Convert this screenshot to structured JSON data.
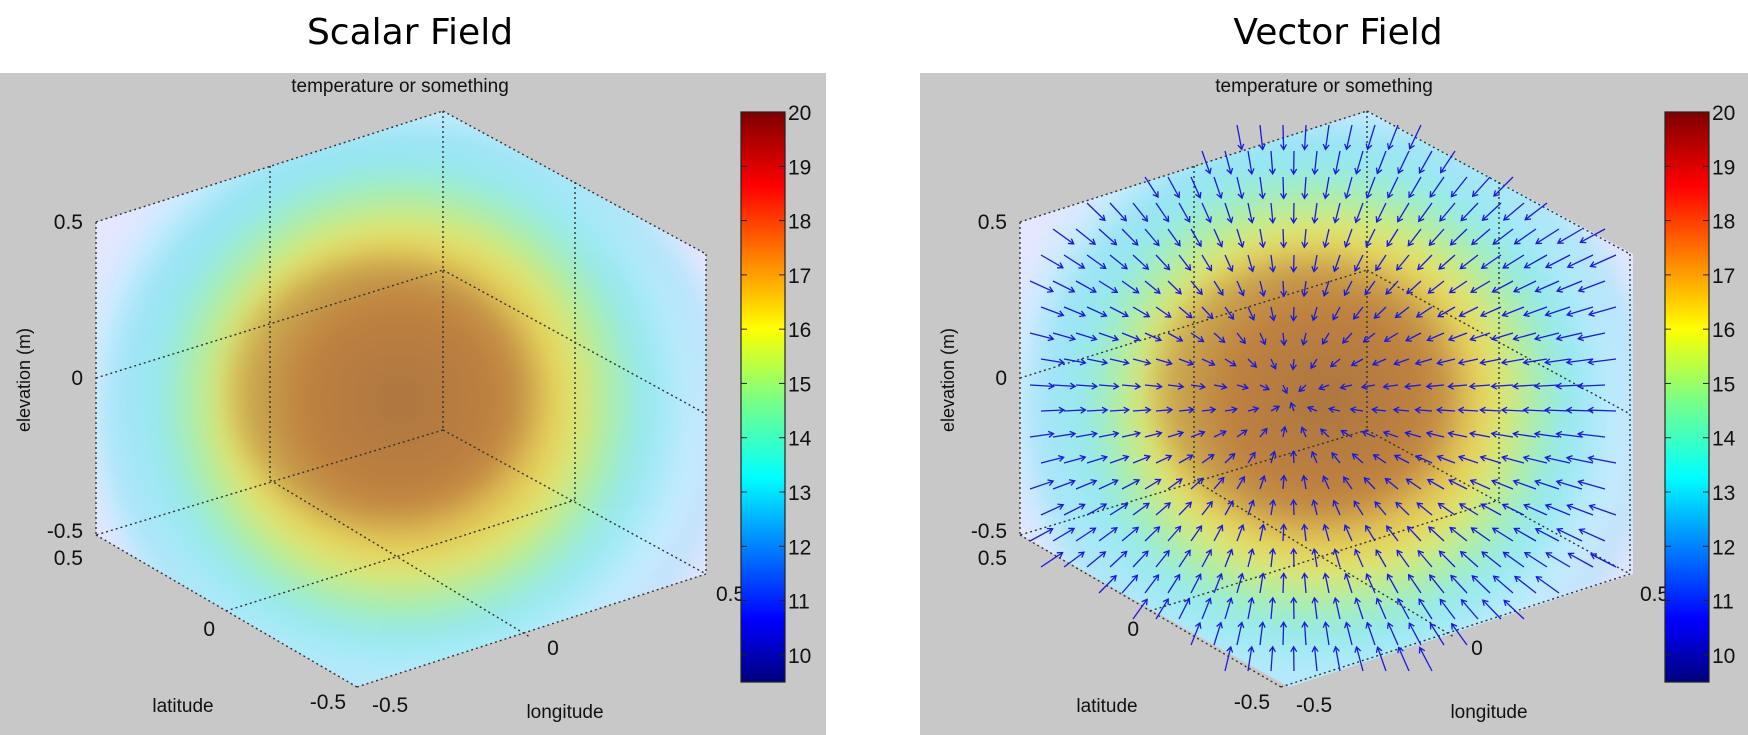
{
  "chart_data": [
    {
      "type": "volume",
      "panel_title": "Scalar Field",
      "title": "temperature or something",
      "xlabel": "longitude",
      "ylabel": "latitude",
      "zlabel": "elevation (m)",
      "xlim": [
        -0.5,
        0.5
      ],
      "ylim": [
        -0.5,
        0.5
      ],
      "zlim": [
        -0.5,
        0.5
      ],
      "x_ticks": [
        "-0.5",
        "0",
        "0.5"
      ],
      "y_ticks": [
        "-0.5",
        "0",
        "0.5"
      ],
      "z_ticks": [
        "-0.5",
        "0",
        "0.5"
      ],
      "colorbar": {
        "range": [
          9.5,
          20
        ],
        "ticks": [
          "10",
          "11",
          "12",
          "13",
          "14",
          "15",
          "16",
          "17",
          "18",
          "19",
          "20"
        ],
        "colormap": "jet"
      },
      "grid": true
    },
    {
      "type": "volume+quiver",
      "panel_title": "Vector Field",
      "title": "temperature or something",
      "xlabel": "longitude",
      "ylabel": "latitude",
      "zlabel": "elevation (m)",
      "xlim": [
        -0.5,
        0.5
      ],
      "ylim": [
        -0.5,
        0.5
      ],
      "zlim": [
        -0.5,
        0.5
      ],
      "x_ticks": [
        "-0.5",
        "0",
        "0.5"
      ],
      "y_ticks": [
        "-0.5",
        "0",
        "0.5"
      ],
      "z_ticks": [
        "-0.5",
        "0",
        "0.5"
      ],
      "colorbar": {
        "range": [
          9.5,
          20
        ],
        "ticks": [
          "10",
          "11",
          "12",
          "13",
          "14",
          "15",
          "16",
          "17",
          "18",
          "19",
          "20"
        ],
        "colormap": "jet"
      },
      "vector_color": "#1a1adc",
      "grid": true
    }
  ],
  "colors": {
    "axes_background": "#c8c8c8",
    "hot_core": "#c8782d",
    "mid_shell": "#e6e650",
    "cool_shell": "#8ce6f0",
    "edge": "#e6e6ff"
  }
}
